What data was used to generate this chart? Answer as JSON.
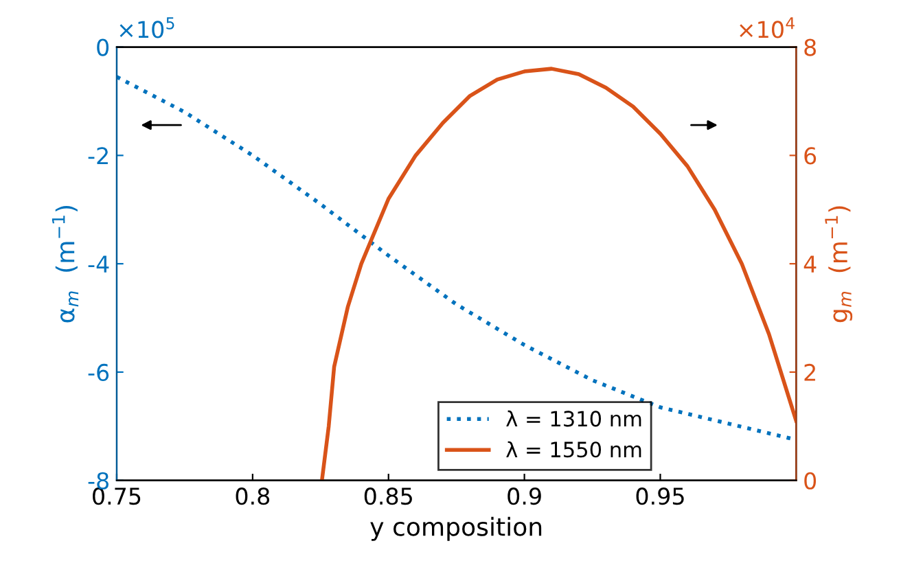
{
  "chart_data": {
    "type": "line",
    "xlabel": "y composition",
    "ylabel": "α$_{m}$  (m$^{−1}$)",
    "y2label": "g$_{m}$  (m$^{−1}$)",
    "annotations": [
      "×10$^{5}$",
      "×10$^{4}$"
    ],
    "xlim": [
      0.75,
      1.0
    ],
    "xticks": [
      0.75,
      0.8,
      0.85,
      0.9,
      0.95
    ],
    "ylim": [
      -8,
      0
    ],
    "yticks": [
      -8,
      -6,
      -4,
      -2,
      0
    ],
    "y2lim": [
      0,
      8
    ],
    "y2ticks": [
      0,
      2,
      4,
      6,
      8
    ],
    "grid": false,
    "legend": "bottom",
    "marker": "none",
    "series": [
      {
        "name": "λ = 1310 nm",
        "color": "#0072bd",
        "line_style": "dotted",
        "axis": "y",
        "x": [
          0.75,
          0.775,
          0.8,
          0.825,
          0.85,
          0.875,
          0.9,
          0.925,
          0.95,
          0.975,
          1.0
        ],
        "values": [
          -0.55,
          -1.2,
          -2.0,
          -2.9,
          -3.85,
          -4.75,
          -5.5,
          -6.15,
          -6.65,
          -6.95,
          -7.25
        ]
      },
      {
        "name": "λ = 1550 nm",
        "color": "#d95319",
        "line_style": "solid",
        "axis": "y2",
        "x": [
          0.8255,
          0.828,
          0.83,
          0.835,
          0.84,
          0.85,
          0.86,
          0.87,
          0.88,
          0.89,
          0.9,
          0.91,
          0.92,
          0.93,
          0.94,
          0.95,
          0.96,
          0.97,
          0.98,
          0.99,
          1.0
        ],
        "values": [
          0,
          1.0,
          2.1,
          3.2,
          4.0,
          5.2,
          6.0,
          6.6,
          7.1,
          7.4,
          7.55,
          7.6,
          7.5,
          7.25,
          6.9,
          6.4,
          5.8,
          5.0,
          4.0,
          2.7,
          1.1
        ]
      }
    ]
  }
}
